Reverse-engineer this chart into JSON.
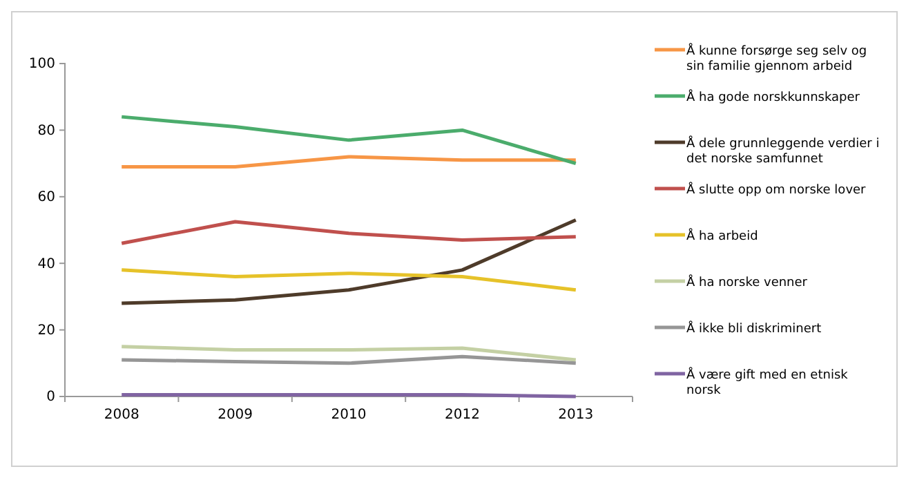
{
  "chart_data": {
    "type": "line",
    "categories": [
      "2008",
      "2009",
      "2010",
      "2012",
      "2013"
    ],
    "ylim": [
      0,
      100
    ],
    "yticks": [
      0,
      20,
      40,
      60,
      80,
      100
    ],
    "grid": false,
    "legend": "right",
    "marker": "none",
    "series": [
      {
        "name": "Å kunne forsørge seg selv og sin familie gjennom arbeid",
        "color": "#f79646",
        "values": [
          69,
          69,
          72,
          71,
          71
        ]
      },
      {
        "name": "Å ha gode norskkunnskaper",
        "color": "#4bac6c",
        "values": [
          84,
          81,
          77,
          80,
          70
        ]
      },
      {
        "name": "Å dele grunnleggende verdier i det norske samfunnet",
        "color": "#4e3b2a",
        "values": [
          28,
          29,
          32,
          38,
          53
        ]
      },
      {
        "name": "Å slutte opp om norske lover",
        "color": "#c0504d",
        "values": [
          46,
          52.5,
          49,
          47,
          48
        ]
      },
      {
        "name": "Å ha arbeid",
        "color": "#e6c229",
        "values": [
          38,
          36,
          37,
          36,
          32
        ]
      },
      {
        "name": "Å ha norske venner",
        "color": "#c4d0a4",
        "values": [
          15,
          14,
          14,
          14.5,
          11
        ]
      },
      {
        "name": "Å ikke bli diskriminert",
        "color": "#969696",
        "values": [
          11,
          10.5,
          10,
          12,
          10
        ]
      },
      {
        "name": "Å være gift med en etnisk norsk",
        "color": "#8064a2",
        "values": [
          0.5,
          0.5,
          0.5,
          0.5,
          0
        ]
      }
    ]
  }
}
